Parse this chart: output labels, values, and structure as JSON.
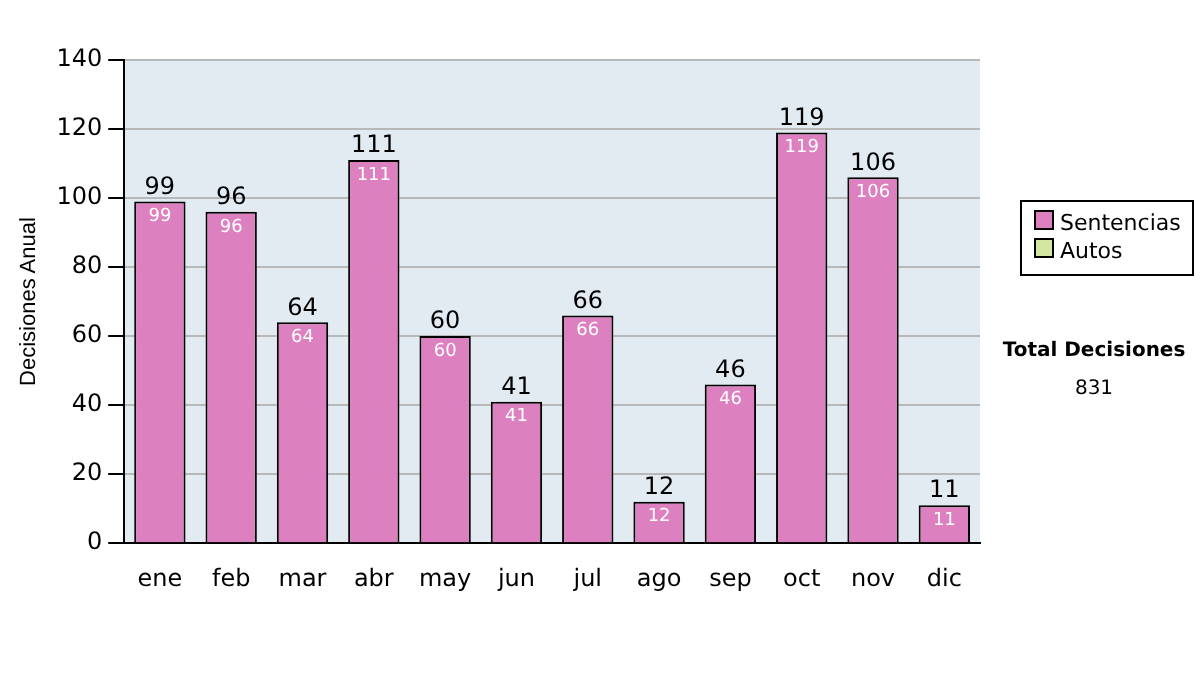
{
  "chart_data": {
    "type": "bar",
    "ylabel": "Decisiones Anual",
    "categories": [
      "ene",
      "feb",
      "mar",
      "abr",
      "may",
      "jun",
      "jul",
      "ago",
      "sep",
      "oct",
      "nov",
      "dic"
    ],
    "series": [
      {
        "name": "Sentencias",
        "color": "#dd80c0",
        "values": [
          99,
          96,
          64,
          111,
          60,
          41,
          66,
          12,
          46,
          119,
          106,
          11
        ],
        "value_labels": [
          "99",
          "96",
          "64",
          "111",
          "60",
          "41",
          "66",
          "12",
          "46",
          "119",
          "106",
          "11"
        ]
      },
      {
        "name": "Autos",
        "color": "#d4e6a0",
        "values": [
          0,
          0,
          0,
          0,
          0,
          0,
          0,
          0,
          0,
          0,
          0,
          0
        ]
      }
    ],
    "stacked": true,
    "totals": [
      "99",
      "96",
      "64",
      "111",
      "60",
      "41",
      "66",
      "12",
      "46",
      "119",
      "106",
      "11"
    ],
    "ylim": [
      0,
      140
    ],
    "yticks": [
      0,
      20,
      40,
      60,
      80,
      100,
      120,
      140
    ],
    "grid": "y",
    "legend": "right",
    "annotations": [
      "Total Decisiones",
      "831"
    ]
  }
}
